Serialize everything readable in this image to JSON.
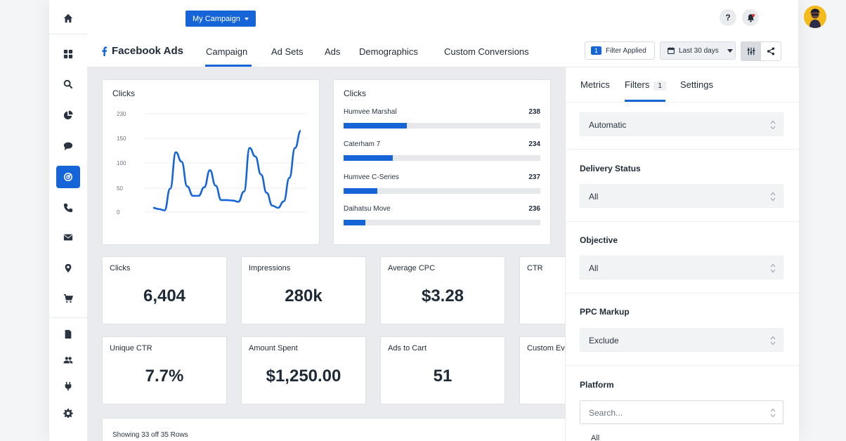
{
  "topbar": {
    "campaign_label": "My Campaign",
    "help_label": "?"
  },
  "subnav": {
    "brand": "Facebook Ads",
    "tabs": [
      "Campaign",
      "Ad Sets",
      "Ads",
      "Demographics",
      "Custom Conversions"
    ],
    "filter_count": "1",
    "filter_label": "Filter Applied",
    "date_range": "Last 30 days"
  },
  "line_card": {
    "title": "Clicks"
  },
  "chart_data": {
    "type": "line",
    "title": "Clicks",
    "xlabel": "",
    "ylabel": "",
    "yticks": [
      "230",
      "150",
      "100",
      "50",
      "0"
    ],
    "ylim": [
      0,
      230
    ],
    "grid": true,
    "series": [
      {
        "values": [
          10,
          7,
          4,
          55,
          140,
          118,
          60,
          38,
          38,
          58,
          98,
          62,
          28,
          28,
          27,
          24,
          48,
          150,
          130,
          88,
          45,
          15,
          10,
          25,
          80,
          150,
          190
        ]
      }
    ]
  },
  "bar_card": {
    "title": "Clicks",
    "rows": [
      {
        "name": "Humvee Marshal",
        "value": "238",
        "fill": 0.32
      },
      {
        "name": "Caterham 7",
        "value": "234",
        "fill": 0.25
      },
      {
        "name": "Humvee C-Series",
        "value": "237",
        "fill": 0.17
      },
      {
        "name": "Daihatsu Move",
        "value": "236",
        "fill": 0.11
      }
    ]
  },
  "stats": [
    {
      "label": "Clicks",
      "value": "6,404"
    },
    {
      "label": "Impressions",
      "value": "280k"
    },
    {
      "label": "Average CPC",
      "value": "$3.28"
    },
    {
      "label": "CTR",
      "value": ""
    },
    {
      "label": "Unique CTR",
      "value": "7.7%"
    },
    {
      "label": "Amount Spent",
      "value": "$1,250.00"
    },
    {
      "label": "Ads to Cart",
      "value": "51"
    },
    {
      "label": "Custom Ev",
      "value": ""
    }
  ],
  "table": {
    "showing": "Showing 33 off 35 Rows"
  },
  "right_panel": {
    "tabs": [
      "Metrics",
      "Filters",
      "Settings"
    ],
    "filters_count": "1",
    "automatic": "Automatic",
    "delivery_label": "Delivery Status",
    "delivery_value": "All",
    "objective_label": "Objective",
    "objective_value": "All",
    "ppc_label": "PPC Markup",
    "ppc_value": "Exclude",
    "platform_label": "Platform",
    "platform_placeholder": "Search...",
    "platform_first_option": "All"
  },
  "colors": {
    "accent": "#1565d8",
    "line": "#1565d8"
  },
  "icons": {
    "rail": [
      "home-icon",
      "grid-icon",
      "search-icon",
      "pie-icon",
      "chat-icon",
      "target-icon",
      "phone-icon",
      "mail-icon",
      "pin-icon",
      "cart-icon",
      "file-icon",
      "users-icon",
      "plug-icon",
      "gear-icon"
    ]
  }
}
